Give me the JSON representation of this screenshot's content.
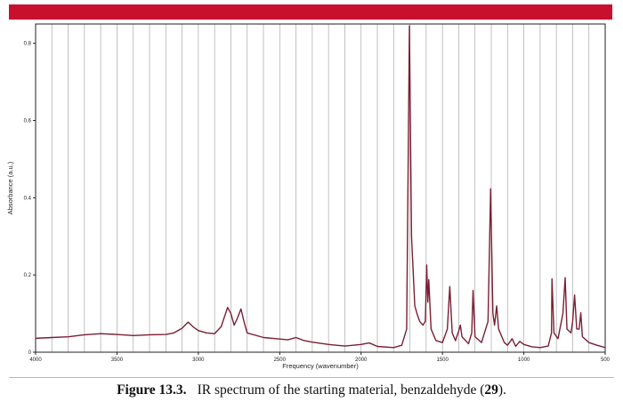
{
  "colors": {
    "header": "#c8102e",
    "trace": "#7a1f35",
    "grid": "#a8a8a8"
  },
  "caption": {
    "figure_label": "Figure 13.3.",
    "text": "IR spectrum of the starting material, benzaldehyde (",
    "compound_number": "29",
    "text_end": ")."
  },
  "chart_data": {
    "type": "line",
    "xlabel": "Frequency (wavenumber)",
    "ylabel": "Absorbance (a.u.)",
    "xlim": [
      4000,
      500
    ],
    "x_reversed": true,
    "ylim": [
      0,
      0.85
    ],
    "x_ticks": [
      4000,
      3500,
      3000,
      2500,
      2000,
      1500,
      1000,
      500
    ],
    "x_tick_labels": [
      "4000",
      "3500",
      "3000",
      "2500",
      "2000",
      "1500",
      "1000",
      "500"
    ],
    "y_ticks": [
      0,
      0.2,
      0.4,
      0.6,
      0.8
    ],
    "y_tick_labels": [
      "0",
      "0.2",
      "0.4",
      "0.6",
      "0.8"
    ],
    "grid": "vertical lines every 100 wavenumbers",
    "series": [
      {
        "points": [
          [
            4000,
            0.036
          ],
          [
            3900,
            0.038
          ],
          [
            3800,
            0.04
          ],
          [
            3700,
            0.045
          ],
          [
            3600,
            0.048
          ],
          [
            3500,
            0.046
          ],
          [
            3400,
            0.043
          ],
          [
            3300,
            0.045
          ],
          [
            3200,
            0.046
          ],
          [
            3150,
            0.05
          ],
          [
            3100,
            0.062
          ],
          [
            3063,
            0.078
          ],
          [
            3030,
            0.065
          ],
          [
            3000,
            0.056
          ],
          [
            2950,
            0.05
          ],
          [
            2900,
            0.048
          ],
          [
            2860,
            0.066
          ],
          [
            2820,
            0.116
          ],
          [
            2800,
            0.1
          ],
          [
            2780,
            0.07
          ],
          [
            2760,
            0.088
          ],
          [
            2738,
            0.112
          ],
          [
            2720,
            0.08
          ],
          [
            2700,
            0.05
          ],
          [
            2600,
            0.038
          ],
          [
            2500,
            0.034
          ],
          [
            2450,
            0.032
          ],
          [
            2400,
            0.038
          ],
          [
            2350,
            0.03
          ],
          [
            2300,
            0.026
          ],
          [
            2200,
            0.02
          ],
          [
            2100,
            0.016
          ],
          [
            2000,
            0.02
          ],
          [
            1950,
            0.024
          ],
          [
            1900,
            0.015
          ],
          [
            1800,
            0.012
          ],
          [
            1750,
            0.018
          ],
          [
            1720,
            0.06
          ],
          [
            1703,
            0.845
          ],
          [
            1690,
            0.3
          ],
          [
            1670,
            0.12
          ],
          [
            1655,
            0.098
          ],
          [
            1640,
            0.08
          ],
          [
            1620,
            0.07
          ],
          [
            1605,
            0.08
          ],
          [
            1597,
            0.226
          ],
          [
            1590,
            0.13
          ],
          [
            1584,
            0.188
          ],
          [
            1570,
            0.06
          ],
          [
            1540,
            0.03
          ],
          [
            1500,
            0.025
          ],
          [
            1470,
            0.06
          ],
          [
            1455,
            0.17
          ],
          [
            1440,
            0.05
          ],
          [
            1420,
            0.03
          ],
          [
            1400,
            0.055
          ],
          [
            1390,
            0.07
          ],
          [
            1380,
            0.04
          ],
          [
            1340,
            0.022
          ],
          [
            1320,
            0.05
          ],
          [
            1312,
            0.16
          ],
          [
            1300,
            0.04
          ],
          [
            1260,
            0.025
          ],
          [
            1220,
            0.08
          ],
          [
            1204,
            0.423
          ],
          [
            1190,
            0.1
          ],
          [
            1180,
            0.07
          ],
          [
            1167,
            0.12
          ],
          [
            1155,
            0.06
          ],
          [
            1120,
            0.025
          ],
          [
            1100,
            0.018
          ],
          [
            1072,
            0.035
          ],
          [
            1050,
            0.015
          ],
          [
            1025,
            0.028
          ],
          [
            1000,
            0.02
          ],
          [
            950,
            0.014
          ],
          [
            900,
            0.012
          ],
          [
            850,
            0.016
          ],
          [
            830,
            0.05
          ],
          [
            827,
            0.19
          ],
          [
            815,
            0.05
          ],
          [
            790,
            0.035
          ],
          [
            760,
            0.1
          ],
          [
            746,
            0.193
          ],
          [
            735,
            0.06
          ],
          [
            710,
            0.05
          ],
          [
            700,
            0.08
          ],
          [
            688,
            0.148
          ],
          [
            675,
            0.06
          ],
          [
            660,
            0.06
          ],
          [
            650,
            0.102
          ],
          [
            640,
            0.04
          ],
          [
            600,
            0.025
          ],
          [
            550,
            0.018
          ],
          [
            500,
            0.012
          ]
        ]
      }
    ]
  }
}
